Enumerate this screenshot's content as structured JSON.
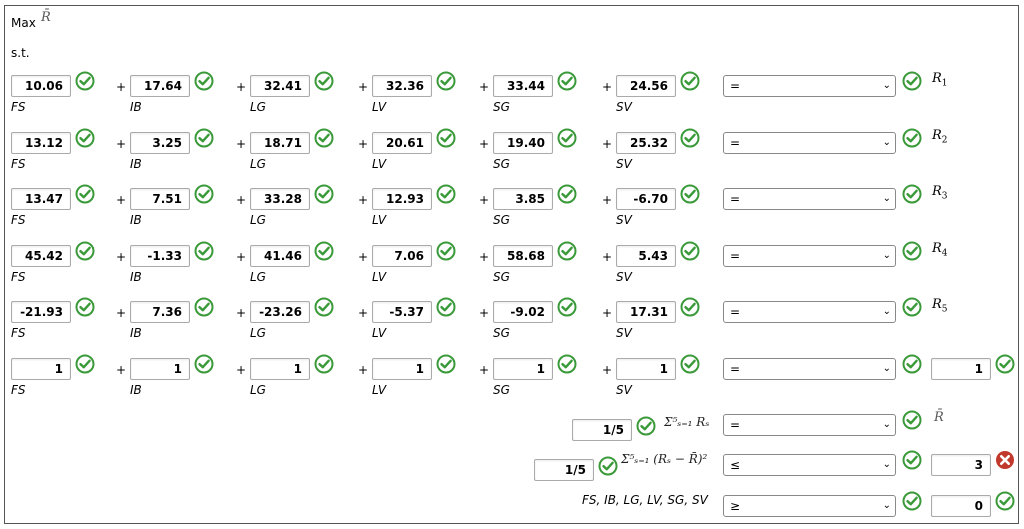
{
  "objective": {
    "label": "Max",
    "symbol": "R̄"
  },
  "st_label": "s.t.",
  "var_names": [
    "FS",
    "IB",
    "LG",
    "LV",
    "SG",
    "SV"
  ],
  "plus": "+",
  "rows": [
    {
      "values": [
        "10.06",
        "17.64",
        "32.41",
        "32.36",
        "33.44",
        "24.56"
      ],
      "relation": "=",
      "rhs_label": "R",
      "rhs_sub": "1"
    },
    {
      "values": [
        "13.12",
        "3.25",
        "18.71",
        "20.61",
        "19.40",
        "25.32"
      ],
      "relation": "=",
      "rhs_label": "R",
      "rhs_sub": "2"
    },
    {
      "values": [
        "13.47",
        "7.51",
        "33.28",
        "12.93",
        "3.85",
        "-6.70"
      ],
      "relation": "=",
      "rhs_label": "R",
      "rhs_sub": "3"
    },
    {
      "values": [
        "45.42",
        "-1.33",
        "41.46",
        "7.06",
        "58.68",
        "5.43"
      ],
      "relation": "=",
      "rhs_label": "R",
      "rhs_sub": "4"
    },
    {
      "values": [
        "-21.93",
        "7.36",
        "-23.26",
        "-5.37",
        "-9.02",
        "17.31"
      ],
      "relation": "=",
      "rhs_label": "R",
      "rhs_sub": "5"
    },
    {
      "values": [
        "1",
        "1",
        "1",
        "1",
        "1",
        "1"
      ],
      "relation": "=",
      "rhs_value": "1"
    }
  ],
  "avg_constraint": {
    "coef": "1/5",
    "formula": "Σ⁵ₛ₌₁ Rₛ",
    "relation": "=",
    "rhs_symbol": "R̄"
  },
  "var_constraint": {
    "coef": "1/5",
    "formula": "Σ⁵ₛ₌₁ (Rₛ − R̄)²",
    "relation": "≤",
    "rhs_value": "3"
  },
  "nonneg_constraint": {
    "label": "FS, IB, LG, LV, SG, SV",
    "relation": "≥",
    "rhs_value": "0"
  },
  "colors": {
    "ok": "#3a9a3a",
    "bad": "#c0392b"
  }
}
